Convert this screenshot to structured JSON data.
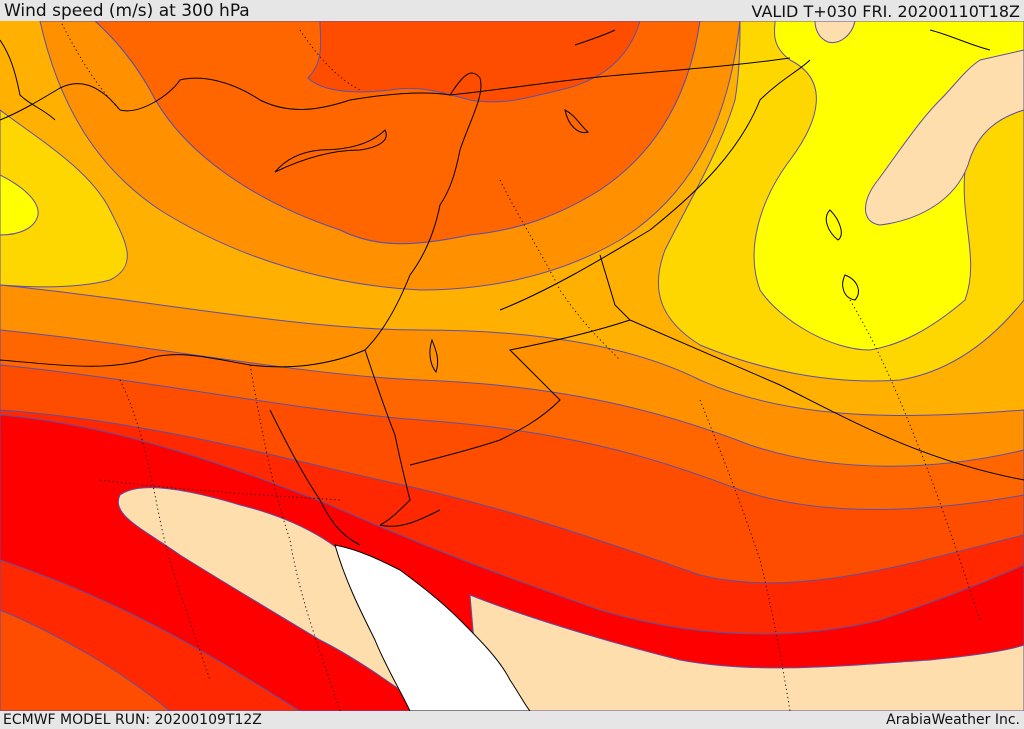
{
  "header": {
    "title": "Wind speed (m/s) at 300 hPa",
    "valid": "VALID T+030 FRI. 20200110T18Z"
  },
  "footer": {
    "model_run": "ECMWF MODEL RUN: 20200109T12Z",
    "credit": "ArabiaWeather Inc."
  },
  "colors": {
    "max_band": "#ff0000",
    "band_very_high": "#ff2800",
    "band_high": "#ff4d00",
    "band_upper": "#ff6600",
    "band_mid": "#ff9000",
    "band_low_mid": "#ffb000",
    "band_low": "#ffd700",
    "band_lower": "#ffee00",
    "band_minimum": "#ffff00",
    "calm": "#ffdead",
    "missing": "#ffffff",
    "contour_line": "#5d4fa8",
    "coastline": "#000000",
    "background": "#e6e6e6"
  }
}
